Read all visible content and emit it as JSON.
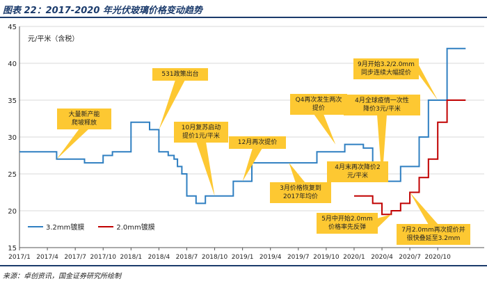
{
  "header": {
    "title": "图表 22：2017-2020 年光伏玻璃价格变动趋势"
  },
  "footer": {
    "source": "来源：卓创资讯，国金证券研究所绘制"
  },
  "chart_data": {
    "type": "line",
    "title": "",
    "ylabel": "元/平米（含税）",
    "xlabel": "",
    "ylim": [
      15,
      45
    ],
    "yticks": [
      15,
      20,
      25,
      30,
      35,
      40,
      45
    ],
    "xlim": [
      "2017-01",
      "2021-03"
    ],
    "xticks": [
      "2017/1",
      "2017/4",
      "2017/7",
      "2017/10",
      "2018/1",
      "2018/4",
      "2018/7",
      "2018/10",
      "2019/1",
      "2019/4",
      "2019/7",
      "2019/10",
      "2020/1",
      "2020/4",
      "2020/7",
      "2020/10"
    ],
    "legend_position": "bottom-left",
    "series": [
      {
        "name": "3.2mm镀膜",
        "color": "#2f7fc1",
        "step": true,
        "points": [
          [
            "2017-01",
            28
          ],
          [
            "2017-05",
            27
          ],
          [
            "2017-08",
            26.5
          ],
          [
            "2017-10",
            27.5
          ],
          [
            "2017-11",
            28
          ],
          [
            "2018-01",
            32
          ],
          [
            "2018-03",
            31
          ],
          [
            "2018-04",
            28
          ],
          [
            "2018-05",
            27.5
          ],
          [
            "2018-05-20",
            27
          ],
          [
            "2018-06",
            26
          ],
          [
            "2018-06-15",
            25
          ],
          [
            "2018-07",
            22
          ],
          [
            "2018-08",
            21
          ],
          [
            "2018-09",
            22
          ],
          [
            "2018-12",
            24
          ],
          [
            "2019-02",
            26.5
          ],
          [
            "2019-09",
            28
          ],
          [
            "2019-12",
            29
          ],
          [
            "2020-02",
            28.5
          ],
          [
            "2020-03",
            26
          ],
          [
            "2020-04",
            24
          ],
          [
            "2020-06",
            26
          ],
          [
            "2020-08",
            30
          ],
          [
            "2020-09",
            35
          ],
          [
            "2020-11",
            42
          ],
          [
            "2021-01",
            42
          ]
        ]
      },
      {
        "name": "2.0mm镀膜",
        "color": "#c00000",
        "step": true,
        "points": [
          [
            "2020-01",
            22
          ],
          [
            "2020-03",
            21
          ],
          [
            "2020-04",
            19.5
          ],
          [
            "2020-05",
            20
          ],
          [
            "2020-06",
            21
          ],
          [
            "2020-07",
            22.5
          ],
          [
            "2020-08",
            24.5
          ],
          [
            "2020-09",
            27
          ],
          [
            "2020-10",
            32
          ],
          [
            "2020-11",
            35
          ],
          [
            "2021-01",
            35
          ]
        ]
      }
    ],
    "annotations": [
      {
        "lines": [
          "大量新产能",
          "爬坡释放"
        ],
        "x": "2017-05",
        "y": 27
      },
      {
        "lines": [
          "531政策出台"
        ],
        "x": "2018-04",
        "y": 31
      },
      {
        "lines": [
          "10月复苏启动",
          "提价1元/平米"
        ],
        "x": "2018-10",
        "y": 22
      },
      {
        "lines": [
          "12月再次提价"
        ],
        "x": "2019-01",
        "y": 24
      },
      {
        "lines": [
          "3月价格恢复到",
          "2017年均价"
        ],
        "x": "2019-06",
        "y": 26.5
      },
      {
        "lines": [
          "Q4再次发生两次",
          "提价"
        ],
        "x": "2019-11",
        "y": 29
      },
      {
        "lines": [
          "4月全球疫情一次性",
          "降价3元/平米"
        ],
        "x": "2020-04",
        "y": 24
      },
      {
        "lines": [
          "9月开始3.2/2.0mm",
          "同步连续大幅提价"
        ],
        "x": "2020-10",
        "y": 35
      },
      {
        "lines": [
          "4月末再次降价2",
          "元/平米"
        ],
        "x": "2020-04",
        "y": 24
      },
      {
        "lines": [
          "5月中开始2.0mm",
          "价格率先反弹"
        ],
        "x": "2020-05",
        "y": 19.5
      },
      {
        "lines": [
          "7月2.0mm再次提价并",
          "很快叠延至3.2mm"
        ],
        "x": "2020-07",
        "y": 22.5
      }
    ]
  }
}
